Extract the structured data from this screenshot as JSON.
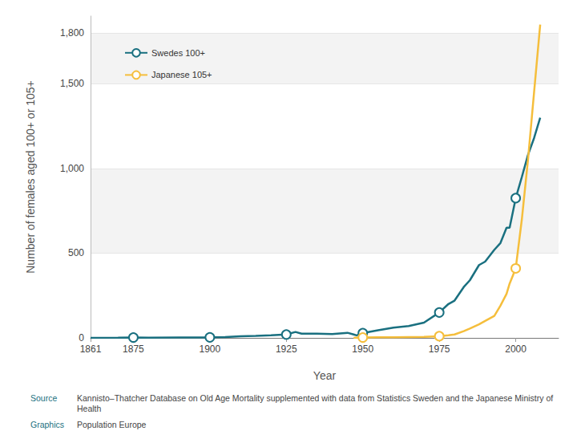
{
  "chart_data": {
    "type": "line",
    "xlabel": "Year",
    "ylabel": "Number of females aged 100+ or 105+",
    "x": [
      1861,
      1870,
      1875,
      1880,
      1890,
      1900,
      1905,
      1910,
      1915,
      1920,
      1925,
      1928,
      1930,
      1935,
      1940,
      1945,
      1947,
      1948,
      1950,
      1955,
      1960,
      1965,
      1970,
      1975,
      1978,
      1980,
      1983,
      1985,
      1988,
      1990,
      1993,
      1995,
      1997,
      1998,
      2000,
      2002,
      2004,
      2006,
      2008
    ],
    "series": [
      {
        "name": "Swedes 100+",
        "color": "#1a7080",
        "marker": "circle",
        "values": [
          0,
          1,
          2,
          1,
          2,
          3,
          5,
          10,
          12,
          15,
          20,
          35,
          25,
          25,
          22,
          30,
          20,
          15,
          28,
          45,
          60,
          70,
          90,
          150,
          200,
          220,
          300,
          340,
          430,
          450,
          520,
          560,
          650,
          650,
          825,
          950,
          1080,
          1180,
          1300
        ]
      },
      {
        "name": "Japanese 105+",
        "color": "#f5be3c",
        "marker": "circle",
        "values": [
          null,
          null,
          null,
          null,
          null,
          null,
          null,
          null,
          null,
          null,
          null,
          null,
          null,
          null,
          null,
          null,
          0,
          1,
          2,
          3,
          3,
          5,
          6,
          10,
          15,
          20,
          40,
          55,
          80,
          100,
          130,
          190,
          260,
          320,
          410,
          700,
          1050,
          1450,
          1850
        ]
      }
    ],
    "xlim": [
      1861,
      2014
    ],
    "xticks": [
      1861,
      1875,
      1900,
      1925,
      1950,
      1975,
      2000
    ],
    "ylim": [
      0,
      1900
    ],
    "yticks": [
      0,
      500,
      {
        "value": 1000,
        "label": "1,000"
      },
      {
        "value": 1500,
        "label": "1,500"
      },
      {
        "value": 1800,
        "label": "1,800"
      }
    ],
    "grid": true,
    "legend": "upper left",
    "annotations": [
      {
        "label": "Source",
        "text": "Kannisto–Thatcher Database on Old Age Mortality supplemented with data from Statistics Sweden and the Japanese Ministry of Health"
      },
      {
        "label": "Graphics",
        "text": "Population Europe"
      }
    ]
  }
}
